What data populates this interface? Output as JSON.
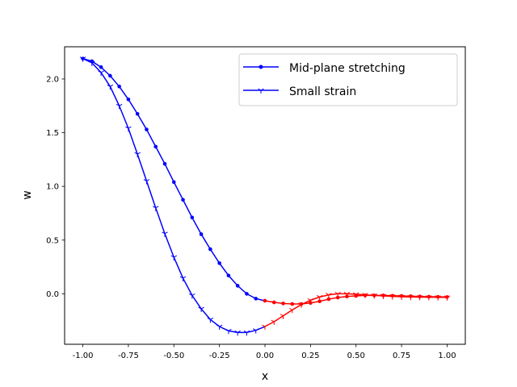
{
  "chart_data": {
    "type": "line",
    "xlabel": "x",
    "ylabel": "w",
    "xlim": [
      -1.1,
      1.1
    ],
    "ylim": [
      -0.47,
      2.3
    ],
    "xticks": [
      "-1.00",
      "-0.75",
      "-0.50",
      "-0.25",
      "0.00",
      "0.25",
      "0.50",
      "0.75",
      "1.00"
    ],
    "yticks": [
      "0.0",
      "0.5",
      "1.0",
      "1.5",
      "2.0"
    ],
    "xtick_values": [
      -1.0,
      -0.75,
      -0.5,
      -0.25,
      0.0,
      0.25,
      0.5,
      0.75,
      1.0
    ],
    "ytick_values": [
      0.0,
      0.5,
      1.0,
      1.5,
      2.0
    ],
    "legend_position": "top-right",
    "colors": {
      "left_segment": "#0000ff",
      "right_segment": "#ff0000"
    },
    "series": [
      {
        "name": "Mid-plane stretching",
        "marker": "dot",
        "points": [
          [
            -1.0,
            2.19
          ],
          [
            -0.95,
            2.165
          ],
          [
            -0.9,
            2.11
          ],
          [
            -0.85,
            2.03
          ],
          [
            -0.8,
            1.93
          ],
          [
            -0.75,
            1.81
          ],
          [
            -0.7,
            1.675
          ],
          [
            -0.65,
            1.53
          ],
          [
            -0.6,
            1.37
          ],
          [
            -0.55,
            1.21
          ],
          [
            -0.5,
            1.04
          ],
          [
            -0.45,
            0.875
          ],
          [
            -0.4,
            0.71
          ],
          [
            -0.35,
            0.555
          ],
          [
            -0.3,
            0.415
          ],
          [
            -0.25,
            0.285
          ],
          [
            -0.2,
            0.17
          ],
          [
            -0.15,
            0.075
          ],
          [
            -0.1,
            0.0
          ],
          [
            -0.05,
            -0.045
          ],
          [
            0.0,
            -0.065
          ],
          [
            0.05,
            -0.08
          ],
          [
            0.1,
            -0.09
          ],
          [
            0.15,
            -0.095
          ],
          [
            0.2,
            -0.095
          ],
          [
            0.25,
            -0.085
          ],
          [
            0.3,
            -0.07
          ],
          [
            0.35,
            -0.05
          ],
          [
            0.4,
            -0.035
          ],
          [
            0.45,
            -0.025
          ],
          [
            0.5,
            -0.02
          ],
          [
            0.55,
            -0.015
          ],
          [
            0.6,
            -0.015
          ],
          [
            0.65,
            -0.015
          ],
          [
            0.7,
            -0.018
          ],
          [
            0.75,
            -0.02
          ],
          [
            0.8,
            -0.022
          ],
          [
            0.85,
            -0.025
          ],
          [
            0.9,
            -0.027
          ],
          [
            0.95,
            -0.028
          ],
          [
            1.0,
            -0.03
          ]
        ]
      },
      {
        "name": "Small strain",
        "marker": "tri_down",
        "points": [
          [
            -1.0,
            2.19
          ],
          [
            -0.95,
            2.15
          ],
          [
            -0.9,
            2.06
          ],
          [
            -0.85,
            1.93
          ],
          [
            -0.8,
            1.75
          ],
          [
            -0.75,
            1.54
          ],
          [
            -0.7,
            1.3
          ],
          [
            -0.65,
            1.05
          ],
          [
            -0.6,
            0.8
          ],
          [
            -0.55,
            0.56
          ],
          [
            -0.5,
            0.34
          ],
          [
            -0.45,
            0.145
          ],
          [
            -0.4,
            -0.015
          ],
          [
            -0.35,
            -0.14
          ],
          [
            -0.3,
            -0.24
          ],
          [
            -0.25,
            -0.305
          ],
          [
            -0.2,
            -0.345
          ],
          [
            -0.15,
            -0.36
          ],
          [
            -0.1,
            -0.36
          ],
          [
            -0.05,
            -0.34
          ],
          [
            0.0,
            -0.305
          ],
          [
            0.05,
            -0.26
          ],
          [
            0.1,
            -0.205
          ],
          [
            0.15,
            -0.15
          ],
          [
            0.2,
            -0.1
          ],
          [
            0.25,
            -0.06
          ],
          [
            0.3,
            -0.03
          ],
          [
            0.35,
            -0.01
          ],
          [
            0.4,
            0.0
          ],
          [
            0.45,
            0.0
          ],
          [
            0.5,
            -0.005
          ],
          [
            0.55,
            -0.01
          ],
          [
            0.6,
            -0.015
          ],
          [
            0.65,
            -0.02
          ],
          [
            0.7,
            -0.024
          ],
          [
            0.75,
            -0.027
          ],
          [
            0.8,
            -0.03
          ],
          [
            0.85,
            -0.031
          ],
          [
            0.9,
            -0.032
          ],
          [
            0.95,
            -0.033
          ],
          [
            1.0,
            -0.034
          ]
        ]
      }
    ]
  }
}
